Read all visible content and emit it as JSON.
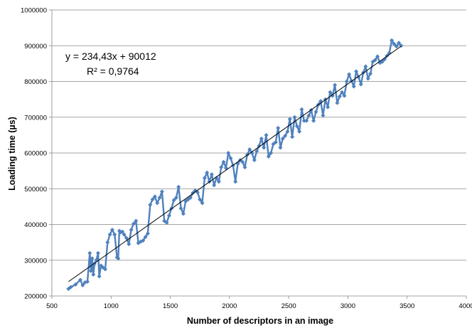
{
  "chart_data": {
    "type": "line",
    "xlabel": "Number of descriptors in an image",
    "ylabel": "Loading time (µs)",
    "xlim": [
      500,
      4000
    ],
    "ylim": [
      200000,
      1000000
    ],
    "x_ticks": [
      500,
      1000,
      1500,
      2000,
      2500,
      3000,
      3500,
      4000
    ],
    "y_ticks": [
      200000,
      300000,
      400000,
      500000,
      600000,
      700000,
      800000,
      900000,
      1000000
    ],
    "grid": "horizontal major gridlines",
    "marker": "diamond",
    "colors": {
      "series": "#4f81bd",
      "trendline": "#000000",
      "grid": "#868686"
    },
    "trendline": {
      "type": "linear",
      "slope": 234.43,
      "intercept": 90012,
      "equation_label": "y = 234,43x + 90012",
      "r2_label": "R² = 0,9764"
    },
    "series": [
      {
        "x": [
          640,
          660,
          700,
          740,
          760,
          780,
          800,
          820,
          830,
          840,
          850,
          860,
          875,
          890,
          900,
          915,
          930,
          950,
          970,
          990,
          1010,
          1030,
          1050,
          1060,
          1070,
          1080,
          1095,
          1110,
          1130,
          1150,
          1170,
          1190,
          1210,
          1230,
          1250,
          1270,
          1290,
          1310,
          1330,
          1350,
          1370,
          1390,
          1410,
          1430,
          1450,
          1470,
          1490,
          1510,
          1530,
          1550,
          1570,
          1590,
          1610,
          1630,
          1650,
          1670,
          1690,
          1710,
          1730,
          1750,
          1770,
          1790,
          1810,
          1830,
          1850,
          1870,
          1890,
          1910,
          1930,
          1950,
          1970,
          1990,
          2010,
          2030,
          2050,
          2070,
          2090,
          2110,
          2130,
          2150,
          2170,
          2190,
          2210,
          2230,
          2250,
          2270,
          2290,
          2310,
          2330,
          2350,
          2370,
          2390,
          2410,
          2430,
          2450,
          2470,
          2490,
          2510,
          2530,
          2550,
          2570,
          2590,
          2610,
          2630,
          2650,
          2670,
          2690,
          2710,
          2730,
          2750,
          2770,
          2790,
          2810,
          2830,
          2850,
          2870,
          2890,
          2910,
          2930,
          2950,
          2970,
          2990,
          3010,
          3030,
          3050,
          3070,
          3090,
          3110,
          3130,
          3150,
          3170,
          3190,
          3210,
          3230,
          3250,
          3270,
          3290,
          3310,
          3330,
          3350,
          3370,
          3390,
          3410,
          3430,
          3450
        ],
        "y": [
          220000,
          225000,
          232000,
          245000,
          230000,
          238000,
          240000,
          320000,
          270000,
          305000,
          260000,
          290000,
          300000,
          320000,
          255000,
          285000,
          280000,
          275000,
          350000,
          372000,
          385000,
          372000,
          308000,
          305000,
          382000,
          378000,
          380000,
          372000,
          362000,
          345000,
          385000,
          402000,
          410000,
          348000,
          352000,
          355000,
          365000,
          375000,
          455000,
          470000,
          478000,
          460000,
          475000,
          492000,
          410000,
          405000,
          425000,
          445000,
          468000,
          475000,
          505000,
          445000,
          430000,
          465000,
          470000,
          475000,
          488000,
          495000,
          490000,
          470000,
          460000,
          530000,
          545000,
          520000,
          540000,
          510000,
          530000,
          520000,
          560000,
          575000,
          558000,
          600000,
          585000,
          565000,
          520000,
          570000,
          580000,
          575000,
          560000,
          595000,
          610000,
          600000,
          580000,
          605000,
          620000,
          640000,
          615000,
          650000,
          590000,
          600000,
          625000,
          630000,
          670000,
          615000,
          640000,
          648000,
          660000,
          695000,
          645000,
          700000,
          675000,
          660000,
          722000,
          690000,
          690000,
          705000,
          720000,
          690000,
          715000,
          735000,
          745000,
          705000,
          750000,
          728000,
          770000,
          760000,
          790000,
          740000,
          758000,
          770000,
          760000,
          800000,
          820000,
          802000,
          786000,
          828000,
          812000,
          792000,
          825000,
          842000,
          808000,
          822000,
          855000,
          860000,
          870000,
          852000,
          855000,
          862000,
          872000,
          880000,
          915000,
          905000,
          898000,
          908000,
          900000
        ]
      }
    ]
  }
}
